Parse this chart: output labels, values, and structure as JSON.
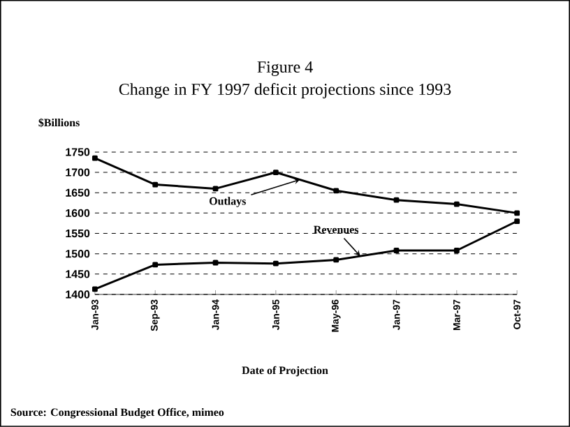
{
  "chart_data": {
    "type": "line",
    "title": "Figure 4",
    "subtitle": "Change in FY 1997 deficit projections since 1993",
    "ylabel": "$Billions",
    "xlabel": "Date of Projection",
    "categories": [
      "Jan-93",
      "Sep-93",
      "Jan-94",
      "Jan-95",
      "May-96",
      "Jan-97",
      "Mar-97",
      "Oct-97"
    ],
    "series": [
      {
        "name": "Outlays",
        "color": "#000000",
        "values": [
          1735,
          1670,
          1660,
          1700,
          1655,
          1632,
          1622,
          1600
        ]
      },
      {
        "name": "Revenues",
        "color": "#000000",
        "values": [
          1413,
          1473,
          1478,
          1476,
          1485,
          1508,
          1508,
          1580
        ]
      }
    ],
    "ylim": [
      1400,
      1750
    ],
    "yticks": [
      1400,
      1450,
      1500,
      1550,
      1600,
      1650,
      1700,
      1750
    ],
    "grid": "y",
    "marker": "square",
    "line_style": "solid",
    "annotations": [
      "Source: Congressional Budget Office, mimeo"
    ]
  }
}
